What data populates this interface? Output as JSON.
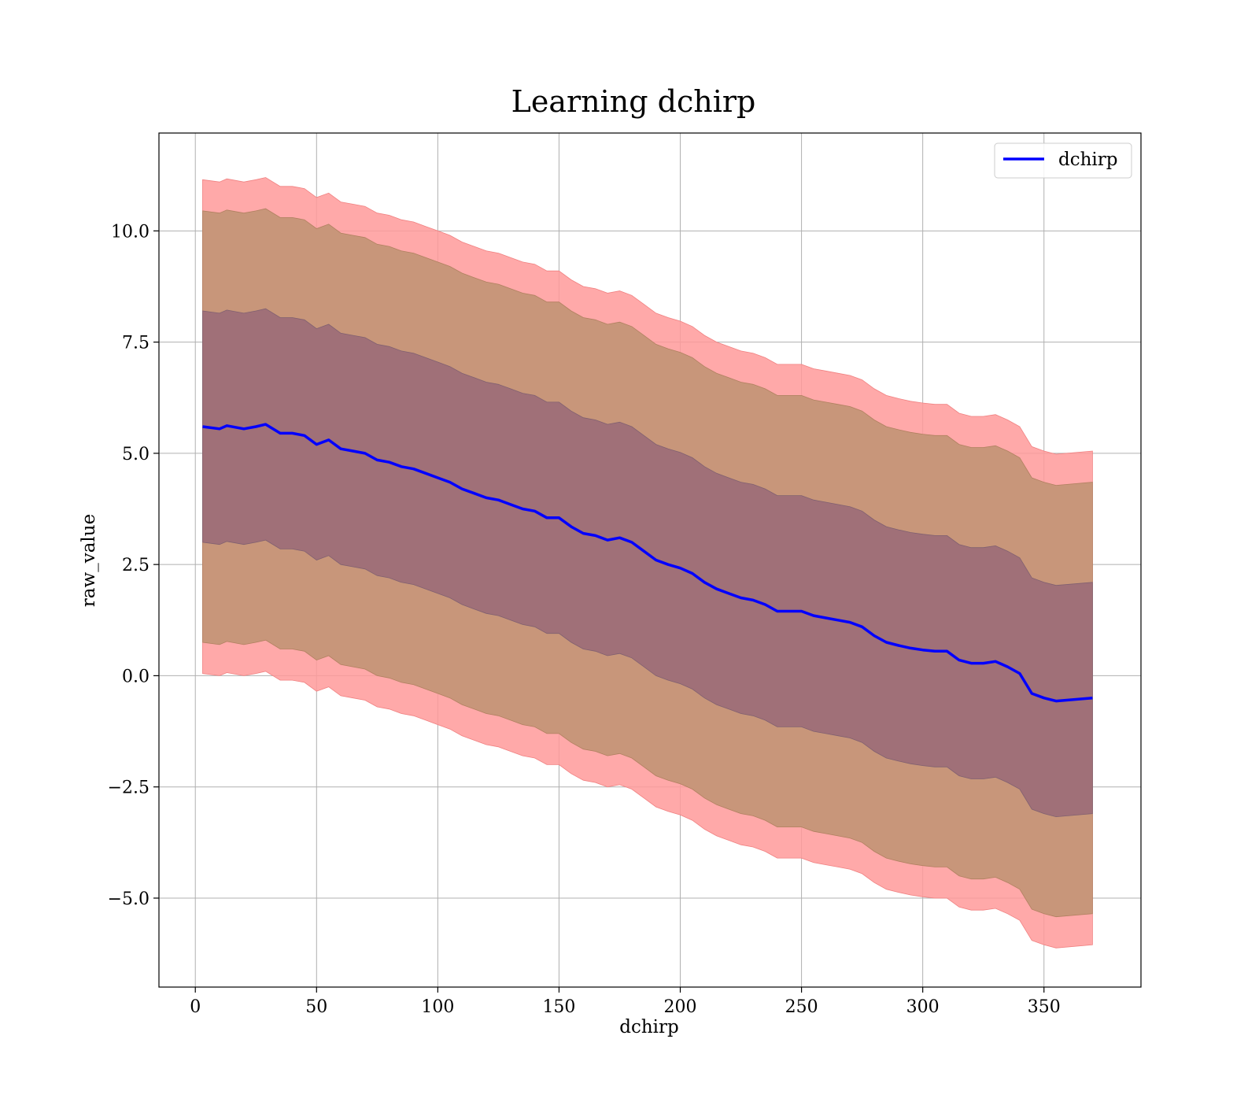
{
  "chart_data": {
    "type": "line",
    "title": "Learning dchirp",
    "xlabel": "dchirp",
    "ylabel": "raw_value",
    "xlim": [
      -15,
      390
    ],
    "ylim": [
      -7,
      12.2
    ],
    "xticks": [
      0,
      50,
      100,
      150,
      200,
      250,
      300,
      350
    ],
    "xtick_labels": [
      "0",
      "50",
      "100",
      "150",
      "200",
      "250",
      "300",
      "350"
    ],
    "yticks": [
      -5.0,
      -2.5,
      0.0,
      2.5,
      5.0,
      7.5,
      10.0
    ],
    "ytick_labels": [
      "−5.0",
      "−2.5",
      "0.0",
      "2.5",
      "5.0",
      "7.5",
      "10.0"
    ],
    "grid": true,
    "legend_position": "top-right",
    "colors": {
      "line": "#0000ff",
      "band_outer": "#ff9a9a",
      "band_middle": "#c8967a",
      "band_inner": "#a07078"
    },
    "band_half_widths": {
      "inner": 2.6,
      "middle": 4.85,
      "outer": 5.55
    },
    "series": [
      {
        "name": "dchirp",
        "x": [
          3,
          10,
          13,
          20,
          25,
          29,
          35,
          40,
          45,
          50,
          55,
          60,
          65,
          70,
          75,
          80,
          85,
          90,
          95,
          100,
          105,
          110,
          115,
          120,
          125,
          130,
          135,
          140,
          145,
          150,
          155,
          160,
          165,
          170,
          175,
          180,
          185,
          190,
          195,
          200,
          205,
          210,
          215,
          220,
          225,
          230,
          235,
          240,
          245,
          250,
          255,
          260,
          265,
          270,
          275,
          280,
          285,
          290,
          295,
          300,
          305,
          310,
          315,
          320,
          325,
          330,
          335,
          340,
          345,
          350,
          355,
          370
        ],
        "y": [
          5.6,
          5.55,
          5.62,
          5.55,
          5.6,
          5.65,
          5.45,
          5.45,
          5.4,
          5.2,
          5.3,
          5.1,
          5.05,
          5.0,
          4.85,
          4.8,
          4.7,
          4.65,
          4.55,
          4.45,
          4.35,
          4.2,
          4.1,
          4.0,
          3.95,
          3.85,
          3.75,
          3.7,
          3.55,
          3.55,
          3.35,
          3.2,
          3.15,
          3.05,
          3.1,
          3.0,
          2.8,
          2.6,
          2.5,
          2.42,
          2.3,
          2.1,
          1.95,
          1.85,
          1.75,
          1.7,
          1.6,
          1.45,
          1.45,
          1.45,
          1.35,
          1.3,
          1.25,
          1.2,
          1.1,
          0.9,
          0.75,
          0.68,
          0.62,
          0.58,
          0.55,
          0.55,
          0.35,
          0.28,
          0.28,
          0.32,
          0.2,
          0.05,
          -0.4,
          -0.5,
          -0.57,
          -0.5
        ]
      }
    ]
  }
}
